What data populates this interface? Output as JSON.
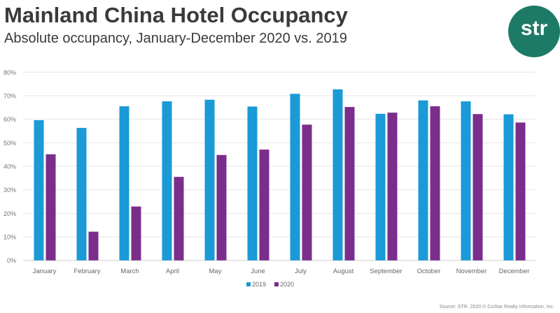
{
  "title": "Mainland China Hotel Occupancy",
  "subtitle": "Absolute occupancy, January-December 2020 vs. 2019",
  "logo_text": "str",
  "source": "Source: STR. 2020 © CoStar Realty Information, Inc.",
  "chart_data": {
    "type": "bar",
    "title": "Mainland China Hotel Occupancy",
    "subtitle": "Absolute occupancy, January-December 2020 vs. 2019",
    "categories": [
      "January",
      "February",
      "March",
      "April",
      "May",
      "June",
      "July",
      "August",
      "September",
      "October",
      "November",
      "December"
    ],
    "series": [
      {
        "name": "2019",
        "color": "#1a9ad6",
        "values": [
          59.6,
          56.3,
          65.5,
          67.6,
          68.3,
          65.4,
          70.8,
          72.7,
          62.3,
          68.0,
          67.6,
          62.1
        ]
      },
      {
        "name": "2020",
        "color": "#7b2d8b",
        "values": [
          45.1,
          12.2,
          22.9,
          35.5,
          44.8,
          47.1,
          57.7,
          65.2,
          62.8,
          65.5,
          62.2,
          58.6
        ]
      }
    ],
    "yticks": [
      "0%",
      "10%",
      "20%",
      "30%",
      "40%",
      "50%",
      "60%",
      "70%",
      "80%"
    ],
    "ylim": [
      0,
      80
    ],
    "grid": true,
    "legend": "bottom"
  }
}
